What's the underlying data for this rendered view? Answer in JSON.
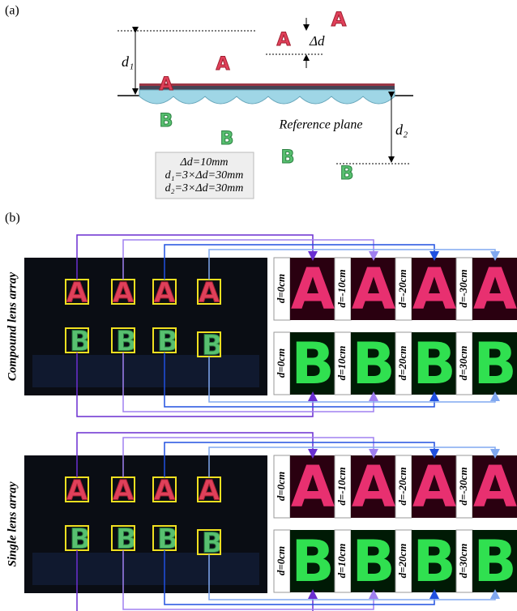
{
  "part_a": {
    "label": "(a)",
    "letter_a": "A",
    "letter_b": "B",
    "d1": "d₁",
    "delta_d": "Δd",
    "reference_plane": "Reference plane",
    "d2": "d₂",
    "box_lines": [
      "Δd=10mm",
      "d₁=3×Δd=30mm",
      "d₂=3×Δd=30mm"
    ]
  },
  "part_b": {
    "label": "(b)",
    "letter_a": "A",
    "letter_b": "B",
    "panels": [
      {
        "title": "Compound lens array",
        "labels_a": [
          "d=0cm",
          "d=-10cm",
          "d=-20cm",
          "d=-30cm"
        ],
        "labels_b": [
          "d=0cm",
          "d=10cm",
          "d=20cm",
          "d=30cm"
        ]
      },
      {
        "title": "Single lens array",
        "labels_a": [
          "d=0cm",
          "d=-10cm",
          "d=-20cm",
          "d=-30cm"
        ],
        "labels_b": [
          "d=0cm",
          "d=10cm",
          "d=20cm",
          "d=30cm"
        ]
      }
    ]
  }
}
